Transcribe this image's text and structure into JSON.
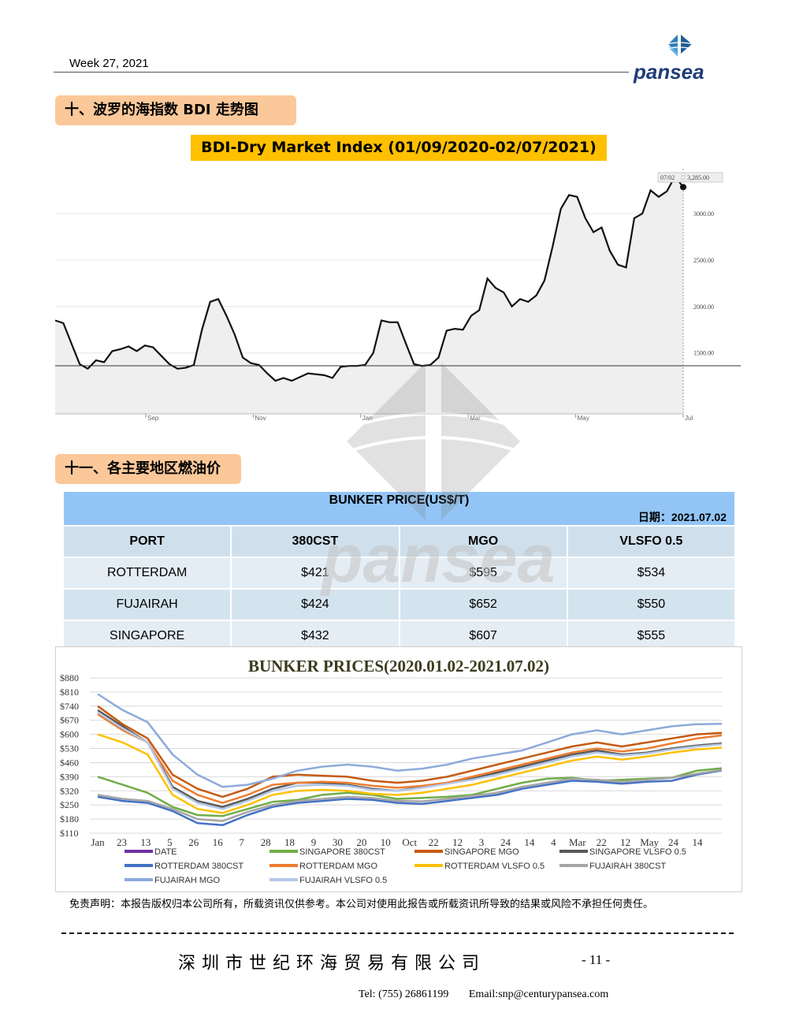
{
  "header": {
    "week": "Week 27, 2021",
    "logo_text": "pansea"
  },
  "section1": {
    "title": "十、波罗的海指数 BDI 走势图"
  },
  "bdi_chart_title": "BDI-Dry Market Index (01/09/2020-02/07/2021)",
  "section2": {
    "title": "十一、各主要地区燃油价"
  },
  "bunker_table": {
    "title": "BUNKER PRICE(US$/T)",
    "date_label": "日期：2021.07.02",
    "columns": [
      "PORT",
      "380CST",
      "MGO",
      "VLSFO 0.5"
    ],
    "rows": [
      [
        "ROTTERDAM",
        "$421",
        "$595",
        "$534"
      ],
      [
        "FUJAIRAH",
        "$424",
        "$652",
        "$550"
      ],
      [
        "SINGAPORE",
        "$432",
        "$607",
        "$555"
      ]
    ]
  },
  "chart_data": [
    {
      "type": "line",
      "title": "BDI-Dry Market Index (01/09/2020-02/07/2021)",
      "x_tick_labels": [
        "Sep",
        "Nov",
        "Jan",
        "Mar",
        "May",
        "Jul"
      ],
      "y_tick_labels": [
        "1500.00",
        "2000.00",
        "2500.00",
        "3000.00"
      ],
      "ylim": [
        700,
        3500
      ],
      "tooltip": {
        "date": "07/02",
        "value": "3,285.00"
      },
      "series": [
        {
          "values": [
            1850,
            1820,
            1600,
            1380,
            1330,
            1420,
            1400,
            1520,
            1540,
            1570,
            1520,
            1580,
            1560,
            1470,
            1380,
            1330,
            1340,
            1370,
            1750,
            2050,
            2080,
            1900,
            1700,
            1450,
            1390,
            1370,
            1280,
            1200,
            1230,
            1200,
            1240,
            1280,
            1270,
            1260,
            1230,
            1350,
            1360,
            1360,
            1370,
            1500,
            1850,
            1830,
            1830,
            1600,
            1380,
            1360,
            1370,
            1450,
            1740,
            1760,
            1750,
            1900,
            1960,
            2300,
            2200,
            2150,
            2000,
            2080,
            2050,
            2120,
            2280,
            2650,
            3050,
            3200,
            3180,
            2950,
            2800,
            2850,
            2600,
            2450,
            2420,
            2950,
            3000,
            3250,
            3180,
            3240,
            3400,
            3285
          ]
        }
      ]
    },
    {
      "type": "line",
      "title": "BUNKER PRICES(2020.01.02-2021.07.02)",
      "ylim": [
        110,
        880
      ],
      "y_tick_labels": [
        "$880",
        "$810",
        "$740",
        "$670",
        "$600",
        "$530",
        "$460",
        "$390",
        "$320",
        "$250",
        "$180",
        "$110"
      ],
      "x_tick_labels": [
        "Jan",
        "23",
        "13",
        "5",
        "26",
        "16",
        "7",
        "28",
        "18",
        "9",
        "30",
        "20",
        "10",
        "Oct",
        "22",
        "12",
        "3",
        "24",
        "14",
        "4",
        "Mar",
        "22",
        "12",
        "May",
        "24",
        "14"
      ],
      "series": [
        {
          "name": "DATE",
          "color": "#7030a0",
          "values": []
        },
        {
          "name": "SINGAPORE 380CST",
          "color": "#70ad47",
          "values": [
            390,
            350,
            310,
            240,
            200,
            195,
            230,
            265,
            275,
            300,
            310,
            300,
            280,
            285,
            290,
            300,
            330,
            360,
            380,
            385,
            370,
            375,
            380,
            385,
            420,
            432
          ]
        },
        {
          "name": "SINGAPORE MGO",
          "color": "#c55a11",
          "values": [
            740,
            650,
            580,
            400,
            330,
            290,
            330,
            390,
            400,
            395,
            390,
            370,
            360,
            370,
            390,
            420,
            450,
            480,
            510,
            540,
            560,
            540,
            560,
            580,
            600,
            607
          ]
        },
        {
          "name": "SINGAPORE VLSFO 0.5",
          "color": "#595959",
          "values": [
            720,
            640,
            560,
            340,
            270,
            240,
            280,
            330,
            360,
            360,
            350,
            330,
            320,
            340,
            360,
            380,
            410,
            440,
            470,
            500,
            520,
            500,
            510,
            530,
            545,
            555
          ]
        },
        {
          "name": "ROTTERDAM 380CST",
          "color": "#4472c4",
          "values": [
            290,
            270,
            260,
            220,
            160,
            150,
            200,
            240,
            260,
            270,
            280,
            275,
            260,
            255,
            270,
            285,
            300,
            330,
            350,
            370,
            365,
            355,
            365,
            370,
            400,
            421
          ]
        },
        {
          "name": "ROTTERDAM MGO",
          "color": "#ed7d31",
          "values": [
            700,
            620,
            560,
            370,
            300,
            260,
            300,
            350,
            360,
            365,
            360,
            345,
            335,
            345,
            360,
            390,
            420,
            450,
            480,
            510,
            530,
            515,
            530,
            555,
            580,
            595
          ]
        },
        {
          "name": "ROTTERDAM VLSFO 0.5",
          "color": "#ffc000",
          "values": [
            600,
            560,
            500,
            300,
            230,
            210,
            250,
            300,
            320,
            325,
            320,
            305,
            300,
            310,
            330,
            350,
            380,
            410,
            440,
            470,
            490,
            475,
            490,
            510,
            525,
            534
          ]
        },
        {
          "name": "FUJAIRAH  380CST",
          "color": "#a5a5a5",
          "values": [
            300,
            280,
            270,
            230,
            180,
            170,
            215,
            250,
            270,
            280,
            290,
            285,
            270,
            268,
            280,
            295,
            310,
            340,
            360,
            380,
            375,
            365,
            375,
            385,
            405,
            424
          ]
        },
        {
          "name": "FUJAIRAH MGO",
          "color": "#8eaadb",
          "values": [
            800,
            720,
            660,
            500,
            400,
            340,
            350,
            380,
            420,
            440,
            450,
            440,
            420,
            430,
            450,
            480,
            500,
            520,
            560,
            600,
            620,
            600,
            620,
            640,
            650,
            652
          ]
        },
        {
          "name": "FUJAIRAH VLSFO 0.5",
          "color": "#b4c7e7",
          "values": [
            710,
            630,
            560,
            330,
            260,
            230,
            270,
            320,
            345,
            350,
            345,
            325,
            320,
            335,
            355,
            375,
            400,
            430,
            460,
            490,
            510,
            495,
            505,
            525,
            540,
            550
          ]
        }
      ]
    }
  ],
  "disclaimer": "免责声明：本报告版权归本公司所有，所载资讯仅供参考。本公司对使用此报告或所载资讯所导致的结果或风险不承担任何责任。",
  "footer": {
    "company": "深圳市世纪环海贸易有限公司",
    "page": "- 11 -",
    "tel": "Tel: (755) 26861199",
    "email": "Email:snp@centurypansea.com"
  }
}
